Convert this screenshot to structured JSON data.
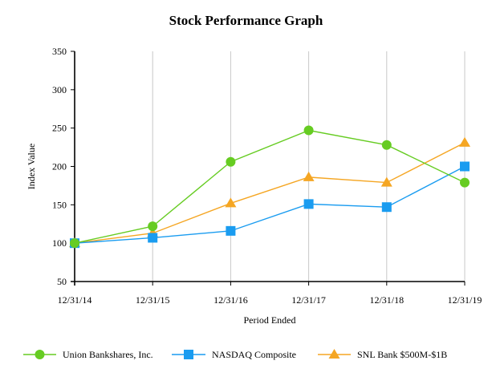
{
  "chart_data": {
    "type": "line",
    "title": "Stock Performance Graph",
    "xlabel": "Period Ended",
    "ylabel": "Index Value",
    "categories": [
      "12/31/14",
      "12/31/15",
      "12/31/16",
      "12/31/17",
      "12/31/18",
      "12/31/19"
    ],
    "ylim": [
      50,
      350
    ],
    "yticks": [
      50,
      100,
      150,
      200,
      250,
      300,
      350
    ],
    "grid": "vertical",
    "legend_position": "bottom",
    "series": [
      {
        "name": "Union Bankshares, Inc.",
        "values": [
          100,
          122,
          206,
          247,
          228,
          179
        ],
        "color": "#66cc22",
        "marker": "circle"
      },
      {
        "name": "NASDAQ Composite",
        "values": [
          100,
          107,
          116,
          151,
          147,
          200
        ],
        "color": "#1a9cf0",
        "marker": "square"
      },
      {
        "name": "SNL Bank $500M-$1B",
        "values": [
          100,
          113,
          152,
          186,
          179,
          231
        ],
        "color": "#f5a623",
        "marker": "triangle"
      }
    ]
  }
}
